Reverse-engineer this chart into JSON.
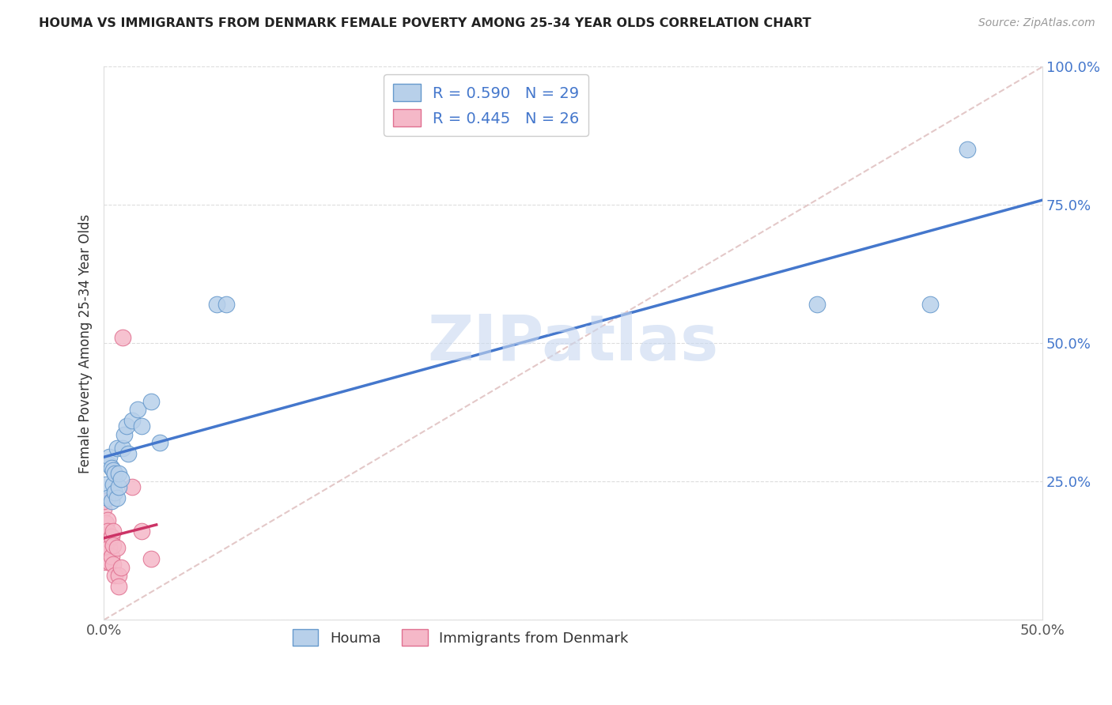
{
  "title": "HOUMA VS IMMIGRANTS FROM DENMARK FEMALE POVERTY AMONG 25-34 YEAR OLDS CORRELATION CHART",
  "source": "Source: ZipAtlas.com",
  "ylabel": "Female Poverty Among 25-34 Year Olds",
  "x_min": 0.0,
  "x_max": 0.5,
  "y_min": 0.0,
  "y_max": 1.0,
  "x_ticks": [
    0.0,
    0.1,
    0.2,
    0.3,
    0.4,
    0.5
  ],
  "x_tick_labels": [
    "0.0%",
    "",
    "",
    "",
    "",
    "50.0%"
  ],
  "y_ticks": [
    0.0,
    0.25,
    0.5,
    0.75,
    1.0
  ],
  "y_tick_labels_right": [
    "",
    "25.0%",
    "50.0%",
    "75.0%",
    "100.0%"
  ],
  "houma_R": 0.59,
  "houma_N": 29,
  "denmark_R": 0.445,
  "denmark_N": 26,
  "houma_color": "#b8d0ea",
  "denmark_color": "#f5b8c8",
  "houma_edge_color": "#6699cc",
  "denmark_edge_color": "#e07090",
  "houma_line_color": "#4477cc",
  "denmark_line_color": "#cc3366",
  "ref_line_color": "#ddbbbb",
  "watermark_color": "#c8d8f0",
  "legend_box_color": "#cccccc",
  "grid_color": "#dddddd",
  "title_color": "#222222",
  "source_color": "#999999",
  "ylabel_color": "#333333",
  "ytick_color": "#4477cc",
  "xtick_color": "#555555",
  "houma_x": [
    0.001,
    0.002,
    0.003,
    0.003,
    0.004,
    0.004,
    0.005,
    0.005,
    0.006,
    0.006,
    0.007,
    0.007,
    0.008,
    0.008,
    0.009,
    0.01,
    0.011,
    0.012,
    0.013,
    0.015,
    0.018,
    0.02,
    0.025,
    0.03,
    0.06,
    0.065,
    0.38,
    0.44,
    0.46
  ],
  "houma_y": [
    0.245,
    0.22,
    0.28,
    0.295,
    0.215,
    0.275,
    0.245,
    0.27,
    0.23,
    0.265,
    0.22,
    0.31,
    0.24,
    0.265,
    0.255,
    0.31,
    0.335,
    0.35,
    0.3,
    0.36,
    0.38,
    0.35,
    0.395,
    0.32,
    0.57,
    0.57,
    0.57,
    0.57,
    0.85
  ],
  "denmark_x": [
    0.0,
    0.0,
    0.0,
    0.0,
    0.001,
    0.001,
    0.001,
    0.002,
    0.002,
    0.003,
    0.003,
    0.003,
    0.004,
    0.004,
    0.005,
    0.005,
    0.005,
    0.006,
    0.007,
    0.008,
    0.008,
    0.009,
    0.01,
    0.015,
    0.02,
    0.025
  ],
  "denmark_y": [
    0.2,
    0.215,
    0.16,
    0.125,
    0.175,
    0.15,
    0.105,
    0.18,
    0.16,
    0.145,
    0.13,
    0.105,
    0.15,
    0.115,
    0.16,
    0.135,
    0.1,
    0.08,
    0.13,
    0.08,
    0.06,
    0.095,
    0.51,
    0.24,
    0.16,
    0.11
  ]
}
